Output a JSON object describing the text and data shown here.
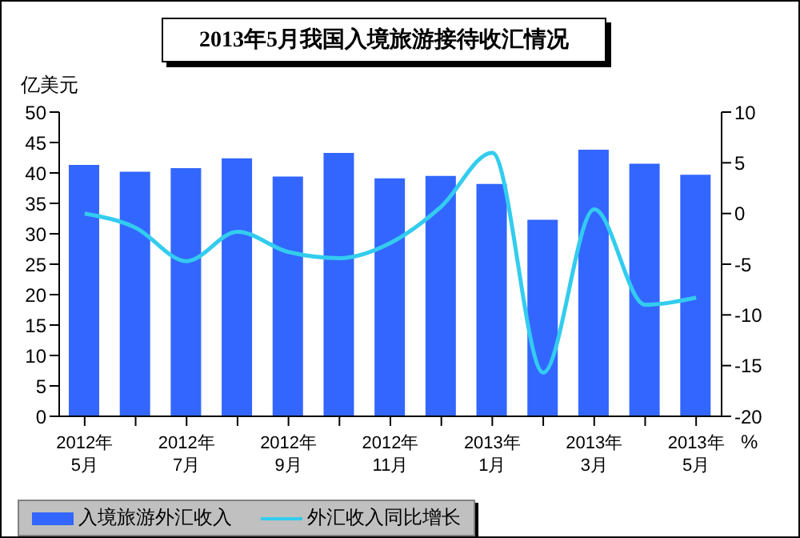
{
  "chart_data": {
    "type": "bar",
    "title": "2013年5月我国入境旅游接待收汇情况",
    "ylabel": "亿美元",
    "y2label": "%",
    "categories": [
      "2012年\n5月",
      null,
      "2012年\n7月",
      null,
      "2012年\n9月",
      null,
      "2012年\n11月",
      null,
      "2013年\n1月",
      null,
      "2013年\n3月",
      null,
      "2013年\n5月"
    ],
    "series": [
      {
        "name": "入境旅游外汇收入",
        "color": "#3366ff",
        "values": [
          41.3,
          40.2,
          40.8,
          42.4,
          39.4,
          43.3,
          39.1,
          39.5,
          38.2,
          32.3,
          43.8,
          41.5,
          39.7
        ]
      },
      {
        "name": "外汇收入同比增长",
        "type": "line",
        "axis": "y2",
        "color": "#33ccee",
        "values": [
          0,
          -1.4,
          -4.7,
          -1.8,
          -3.8,
          -4.4,
          -2.9,
          0.7,
          6.0,
          -15.7,
          0.4,
          -9.0,
          -8.3
        ]
      }
    ],
    "ylim": [
      0,
      50
    ],
    "yticks": [
      0,
      5,
      10,
      15,
      20,
      25,
      30,
      35,
      40,
      45,
      50
    ],
    "y2lim": [
      -20,
      10
    ],
    "y2ticks": [
      -20,
      -15,
      -10,
      -5,
      0,
      5,
      10
    ],
    "grid": false,
    "legend": "bottom left",
    "marker": "none",
    "line_style": "solid"
  }
}
